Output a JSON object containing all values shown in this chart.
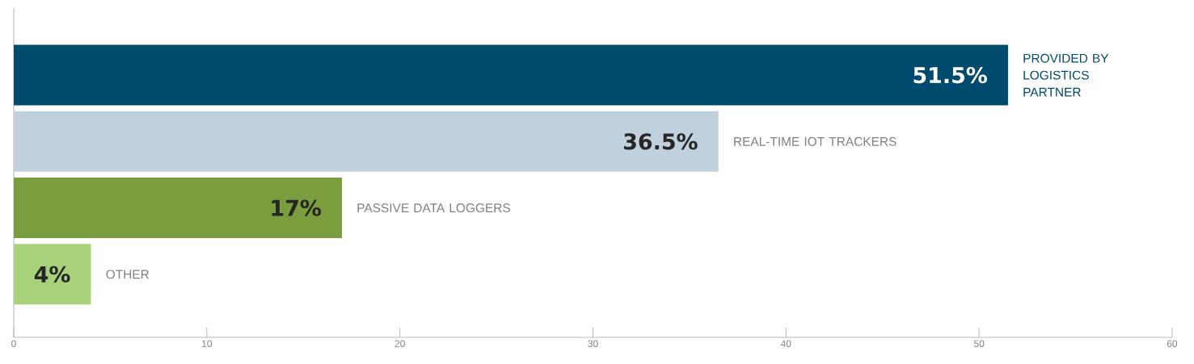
{
  "chart_data": {
    "type": "bar",
    "orientation": "horizontal",
    "categories": [
      "PROVIDED BY LOGISTICS PARTNER",
      "REAL-TIME IOT TRACKERS",
      "PASSIVE DATA LOGGERS",
      "OTHER"
    ],
    "values": [
      51.5,
      36.5,
      17,
      4
    ],
    "value_labels": [
      "51.5%",
      "36.5%",
      "17%",
      "4%"
    ],
    "colors": [
      "#004a6e",
      "#c0d0dc",
      "#7a9e3e",
      "#a8d27a"
    ],
    "xlim": [
      0,
      60
    ],
    "xticks": [
      0,
      10,
      20,
      30,
      40,
      50,
      60
    ],
    "grid": false
  }
}
